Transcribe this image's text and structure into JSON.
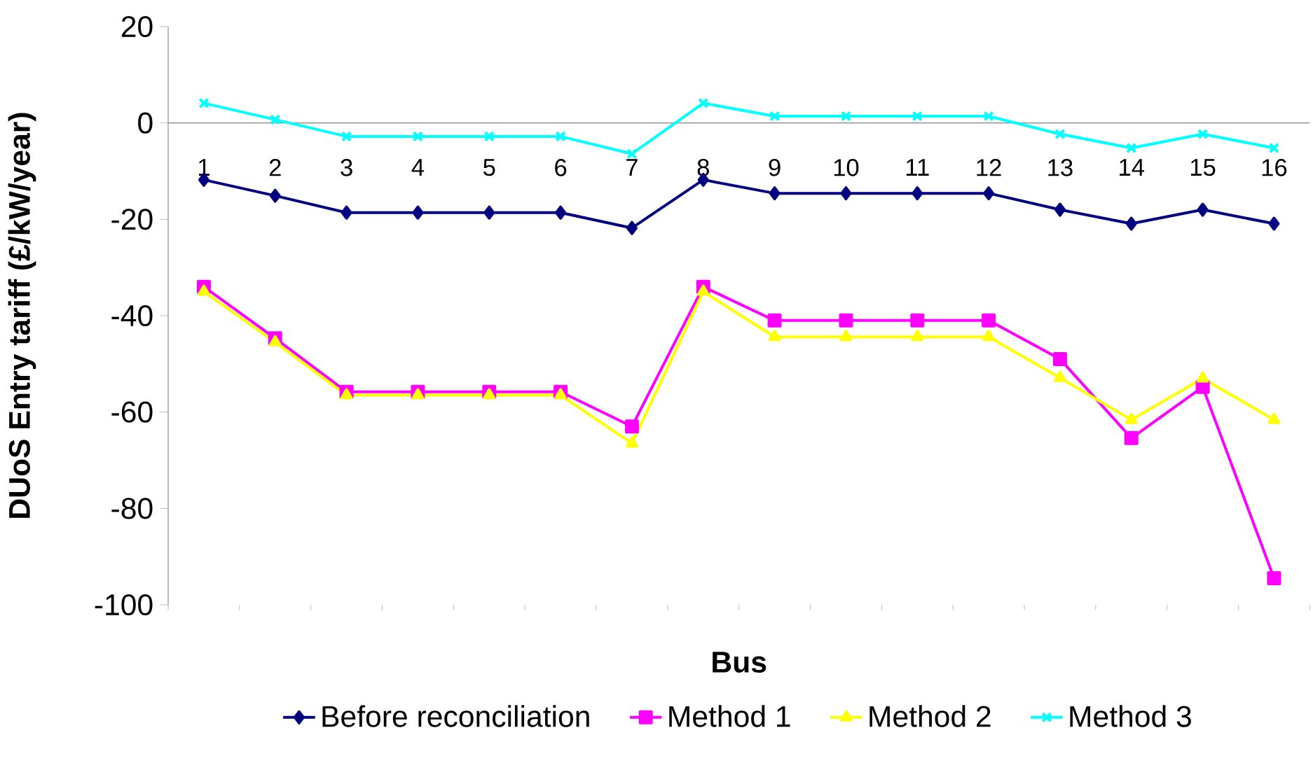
{
  "chart_data": {
    "type": "line",
    "xlabel": "Bus",
    "ylabel": "DUoS Entry tariff (£/kW/year)",
    "categories": [
      "1",
      "2",
      "3",
      "4",
      "5",
      "6",
      "7",
      "8",
      "9",
      "10",
      "11",
      "12",
      "13",
      "14",
      "15",
      "16"
    ],
    "ylim": [
      -100,
      20
    ],
    "yticks": [
      -100,
      -80,
      -60,
      -40,
      -20,
      0,
      20
    ],
    "grid": false,
    "legend": "bottom",
    "series": [
      {
        "name": "Before reconciliation",
        "color": "#000080",
        "marker": "diamond",
        "values": [
          -11.8,
          -15.1,
          -18.6,
          -18.6,
          -18.6,
          -18.6,
          -21.8,
          -11.8,
          -14.6,
          -14.6,
          -14.6,
          -14.6,
          -18,
          -20.9,
          -18,
          -20.9
        ]
      },
      {
        "name": "Method 1",
        "color": "#ff00ff",
        "marker": "square",
        "values": [
          -34,
          -44.7,
          -55.8,
          -55.8,
          -55.8,
          -55.8,
          -63,
          -34,
          -41,
          -41,
          -41,
          -41,
          -49,
          -65.4,
          -54.8,
          -94.5
        ]
      },
      {
        "name": "Method 2",
        "color": "#ffff00",
        "marker": "triangle",
        "values": [
          -35,
          -45.5,
          -56.5,
          -56.5,
          -56.5,
          -56.5,
          -66.5,
          -35,
          -44.4,
          -44.4,
          -44.4,
          -44.4,
          -52.9,
          -61.6,
          -53,
          -61.6
        ]
      },
      {
        "name": "Method 3",
        "color": "#00ffff",
        "marker": "cross",
        "values": [
          4.1,
          0.7,
          -2.8,
          -2.8,
          -2.8,
          -2.8,
          -6.4,
          4.1,
          1.4,
          1.4,
          1.4,
          1.4,
          -2.3,
          -5.2,
          -2.3,
          -5.2
        ]
      }
    ]
  }
}
